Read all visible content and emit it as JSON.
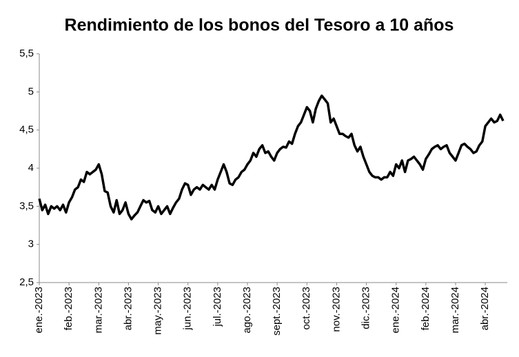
{
  "chart_data": {
    "type": "line",
    "title": "Rendimiento de los bonos del Tesoro a 10 años",
    "color": "#000000",
    "values": [
      3.6,
      3.45,
      3.52,
      3.4,
      3.5,
      3.47,
      3.5,
      3.45,
      3.52,
      3.42,
      3.55,
      3.62,
      3.72,
      3.75,
      3.85,
      3.82,
      3.95,
      3.92,
      3.95,
      3.98,
      4.05,
      3.92,
      3.7,
      3.68,
      3.5,
      3.42,
      3.58,
      3.4,
      3.45,
      3.55,
      3.4,
      3.33,
      3.38,
      3.42,
      3.5,
      3.58,
      3.55,
      3.57,
      3.45,
      3.42,
      3.5,
      3.4,
      3.45,
      3.5,
      3.4,
      3.48,
      3.55,
      3.6,
      3.72,
      3.8,
      3.78,
      3.65,
      3.72,
      3.75,
      3.72,
      3.78,
      3.75,
      3.72,
      3.78,
      3.72,
      3.85,
      3.95,
      4.05,
      3.95,
      3.8,
      3.78,
      3.85,
      3.88,
      3.95,
      3.98,
      4.05,
      4.1,
      4.2,
      4.15,
      4.25,
      4.3,
      4.2,
      4.22,
      4.15,
      4.1,
      4.2,
      4.25,
      4.28,
      4.27,
      4.35,
      4.32,
      4.45,
      4.55,
      4.6,
      4.7,
      4.8,
      4.75,
      4.6,
      4.78,
      4.88,
      4.95,
      4.9,
      4.85,
      4.6,
      4.65,
      4.55,
      4.45,
      4.45,
      4.42,
      4.4,
      4.45,
      4.3,
      4.22,
      4.28,
      4.15,
      4.05,
      3.95,
      3.9,
      3.88,
      3.88,
      3.85,
      3.88,
      3.88,
      3.95,
      3.9,
      4.05,
      4.0,
      4.1,
      3.95,
      4.1,
      4.12,
      4.15,
      4.1,
      4.05,
      3.98,
      4.12,
      4.18,
      4.25,
      4.28,
      4.3,
      4.25,
      4.28,
      4.3,
      4.2,
      4.15,
      4.1,
      4.2,
      4.3,
      4.32,
      4.28,
      4.25,
      4.2,
      4.22,
      4.3,
      4.35,
      4.55,
      4.6,
      4.65,
      4.6,
      4.62,
      4.7,
      4.62
    ],
    "xlim": [
      0,
      156
    ],
    "xticks": [
      {
        "value": 0,
        "label": "ene.-2023"
      },
      {
        "value": 10,
        "label": "feb.-2023"
      },
      {
        "value": 20,
        "label": "mar.-2023"
      },
      {
        "value": 30,
        "label": "abr.-2023"
      },
      {
        "value": 40,
        "label": "may.-2023"
      },
      {
        "value": 50,
        "label": "jun.-2023"
      },
      {
        "value": 60,
        "label": "jul.-2023"
      },
      {
        "value": 70,
        "label": "ago.-2023"
      },
      {
        "value": 80,
        "label": "sept.-2023"
      },
      {
        "value": 90,
        "label": "oct.-2023"
      },
      {
        "value": 100,
        "label": "nov.-2023"
      },
      {
        "value": 110,
        "label": "dic.-2023"
      },
      {
        "value": 120,
        "label": "ene.-2024"
      },
      {
        "value": 130,
        "label": "feb.-2024"
      },
      {
        "value": 140,
        "label": "mar.-2024"
      },
      {
        "value": 150,
        "label": "abr.-2024"
      }
    ],
    "ylim": [
      2.5,
      5.5
    ],
    "yticks": [
      {
        "value": 2.5,
        "label": "2,5"
      },
      3,
      {
        "value": 3.5,
        "label": "3,5"
      },
      4,
      {
        "value": 4.5,
        "label": "4,5"
      },
      5,
      {
        "value": 5.5,
        "label": "5,5"
      }
    ]
  }
}
